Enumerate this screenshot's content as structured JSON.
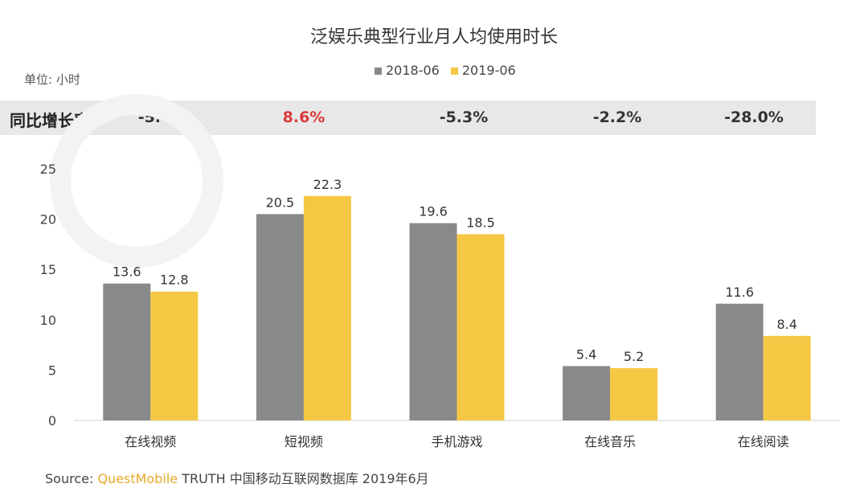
{
  "chart_data": {
    "type": "bar",
    "title": "泛娱乐典型行业月人均使用时长",
    "unit_label": "单位: 小时",
    "categories": [
      "在线视频",
      "短视频",
      "手机游戏",
      "在线音乐",
      "在线阅读"
    ],
    "series": [
      {
        "name": "2018-06",
        "color": "#898989",
        "values": [
          13.6,
          20.5,
          19.6,
          5.4,
          11.6
        ]
      },
      {
        "name": "2019-06",
        "color": "#f5c844",
        "values": [
          12.8,
          22.3,
          18.5,
          5.2,
          8.4
        ]
      }
    ],
    "ylim": [
      0,
      25
    ],
    "yticks": [
      0,
      5,
      10,
      15,
      20,
      25
    ],
    "grid": false,
    "legend_position": "top-center",
    "growth_row": {
      "label": "同比增长率",
      "values": [
        "-5.4%",
        "8.6%",
        "-5.3%",
        "-2.2%",
        "-28.0%"
      ],
      "highlight_color": "#d93a3a",
      "highlight_index": 1
    }
  },
  "source": {
    "prefix": "Source:",
    "brand": "QuestMobile",
    "text": "TRUTH 中国移动互联网数据库 2019年6月"
  },
  "watermark": "QUEST MOBILE"
}
